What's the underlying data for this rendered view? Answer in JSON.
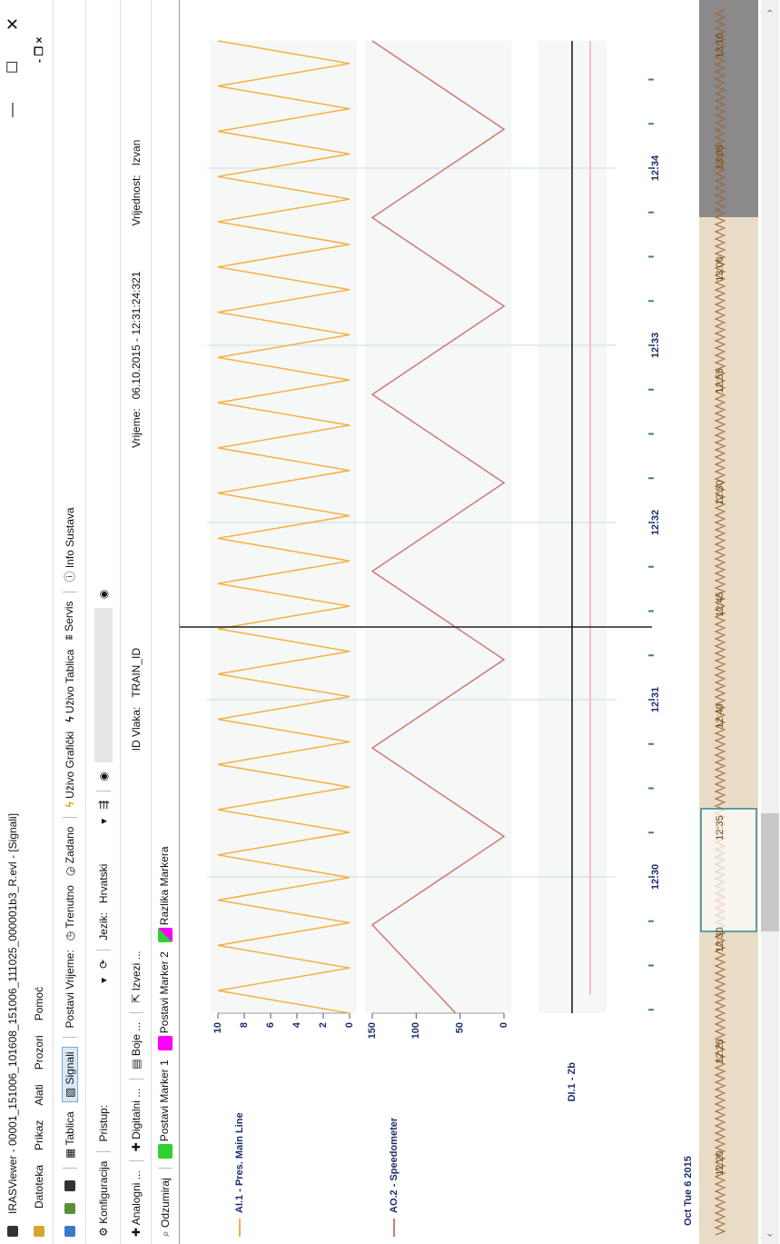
{
  "window": {
    "title": "IRASViewer - 00001_151006_101608_151006_111025_000001b3_R.evl - [Signali]"
  },
  "menu": [
    "Datoteka",
    "Prikaz",
    "Alati",
    "Prozori",
    "Pomoć"
  ],
  "toolbar": {
    "tablica": "Tablica",
    "signali": "Signali",
    "postavi_vrijeme": "Postavi Vrijeme:",
    "trenutno": "Trenutno",
    "zadano": "Zadano",
    "uzivo_graficki": "Uživo Grafički",
    "uzivo_tablica": "Uživo Tablica",
    "servis": "Servis",
    "info": "Info Sustava"
  },
  "config": {
    "konfiguracija": "Konfiguracija",
    "pristup": "Pristup:",
    "jezik": "Jezik:",
    "jezik_value": "Hrvatski"
  },
  "signals_bar": {
    "analogni": "Analogni ...",
    "digitalni": "Digitalni ...",
    "boje": "Boje ...",
    "izvezi": "Izvezi ...",
    "id_label": "ID Vlaka:",
    "id_value": "TRAIN_ID",
    "time_label": "Vrijeme:",
    "time_value": "06.10.2015 - 12:31:24:321",
    "value_label": "Vrijednost:",
    "value_value": "Izvan"
  },
  "marker_bar": {
    "odzumiraj": "Odzumiraj",
    "marker1": "Postavi Marker 1",
    "marker2": "Postavi Marker 2",
    "razlika": "Razlika Markera"
  },
  "chart": {
    "signals": [
      {
        "name": "AI.1 - Pres. Main Line",
        "color": "#f5b043",
        "ylim": [
          0,
          10
        ],
        "yticks": [
          0,
          2,
          4,
          6,
          8,
          10
        ],
        "values": [
          0,
          10,
          0,
          10,
          0,
          10,
          0,
          10,
          0,
          10,
          0,
          10,
          0,
          10,
          0,
          10,
          0,
          10,
          0,
          10,
          0,
          10,
          0,
          10,
          0,
          10,
          0,
          10,
          0,
          10,
          0,
          10,
          0,
          10,
          0,
          10,
          0,
          10,
          0,
          10,
          0,
          10,
          0,
          10
        ]
      },
      {
        "name": "AO.2 - Speedometer",
        "color": "#cf7a72",
        "ylim": [
          0,
          150
        ],
        "yticks": [
          0,
          50,
          100,
          150
        ],
        "values": [
          55,
          150,
          0,
          150,
          0,
          150,
          0,
          150,
          0,
          150,
          0,
          150
        ]
      }
    ],
    "digital": {
      "name": "DI.1 - Zb"
    },
    "time_ticks": [
      "12:30",
      "12:31",
      "12:32",
      "12:33",
      "12:34"
    ],
    "date": "Oct Tue 6 2015",
    "overview_ticks": [
      "12:20",
      "12:25",
      "12:30",
      "12:35",
      "12:40",
      "12:45",
      "12:50",
      "12:55",
      "13:00",
      "13:05",
      "13:10"
    ]
  }
}
